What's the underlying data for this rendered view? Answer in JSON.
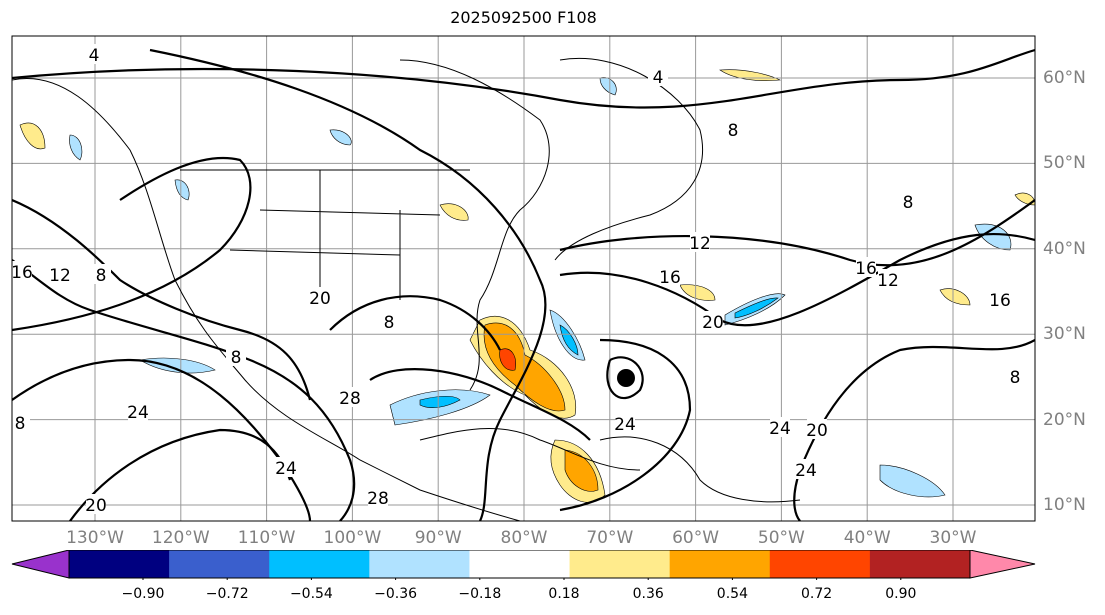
{
  "title": "2025092500 F108",
  "lon_labels": [
    "130°W",
    "120°W",
    "110°W",
    "100°W",
    "90°W",
    "80°W",
    "70°W",
    "60°W",
    "50°W",
    "40°W",
    "30°W"
  ],
  "lat_labels": [
    "60°N",
    "50°N",
    "40°N",
    "30°N",
    "20°N",
    "10°N"
  ],
  "contour_labels": [
    "4",
    "4",
    "8",
    "8",
    "8",
    "8",
    "8",
    "8",
    "8",
    "12",
    "12",
    "12",
    "16",
    "16",
    "16",
    "16",
    "20",
    "20",
    "20",
    "20",
    "24",
    "24",
    "24",
    "24",
    "24",
    "28",
    "28"
  ],
  "colorbar": {
    "ticks": [
      "−0.90",
      "−0.72",
      "−0.54",
      "−0.36",
      "−0.18",
      "0.18",
      "0.36",
      "0.54",
      "0.72",
      "0.90"
    ],
    "colors": [
      "#9932cc",
      "#000080",
      "#3a5fcd",
      "#00bfff",
      "#b0e2ff",
      "#ffffff",
      "#ffeb8c",
      "#ffa500",
      "#ff4500",
      "#b22222",
      "#ff88aa"
    ]
  }
}
